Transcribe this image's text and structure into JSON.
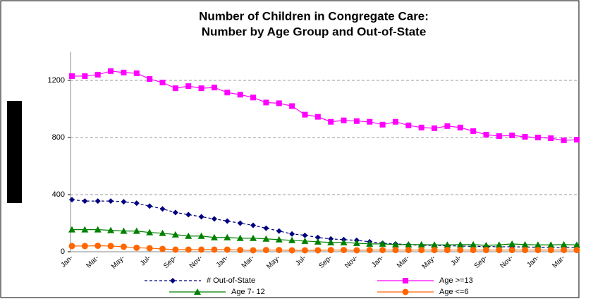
{
  "chart_data": {
    "type": "line",
    "title": "Number of Children in Congregate Care:",
    "subtitle": "Number by Age Group and Out-of-State",
    "categories": [
      "Jan-",
      null,
      "Mar-",
      null,
      "May-",
      null,
      "Jul-",
      null,
      "Sep-",
      null,
      "Nov-",
      null,
      "Jan-",
      null,
      "Mar-",
      null,
      "May-",
      null,
      "Jul-",
      null,
      "Sep-",
      null,
      "Nov-",
      null,
      "Jan-",
      null,
      "Mar-",
      null,
      "May-",
      null,
      "Jul-",
      null,
      "Sep-",
      null,
      "Nov-",
      null,
      "Jan-",
      null,
      "Mar-",
      null
    ],
    "series": [
      {
        "name": "# Out-of-State",
        "color": "#000080",
        "marker": "diamond",
        "dashed": true,
        "values": [
          365,
          355,
          355,
          355,
          350,
          340,
          320,
          300,
          275,
          260,
          245,
          230,
          215,
          200,
          185,
          165,
          145,
          125,
          115,
          100,
          90,
          85,
          80,
          70,
          60,
          55,
          50,
          45,
          45,
          42,
          40,
          38,
          37,
          35,
          35,
          33,
          32,
          30,
          30,
          30
        ]
      },
      {
        "name": "Age >=13",
        "color": "#ff00ff",
        "marker": "square",
        "dashed": false,
        "values": [
          1230,
          1230,
          1240,
          1265,
          1255,
          1250,
          1210,
          1185,
          1145,
          1160,
          1145,
          1150,
          1115,
          1100,
          1080,
          1045,
          1040,
          1020,
          960,
          945,
          910,
          920,
          915,
          910,
          890,
          910,
          885,
          870,
          865,
          880,
          870,
          845,
          820,
          810,
          815,
          805,
          800,
          795,
          780,
          785
        ]
      },
      {
        "name": "Age 7- 12",
        "color": "#008000",
        "marker": "triangle",
        "dashed": false,
        "values": [
          155,
          155,
          155,
          150,
          145,
          145,
          135,
          130,
          120,
          110,
          110,
          100,
          100,
          95,
          95,
          90,
          85,
          80,
          75,
          70,
          65,
          65,
          60,
          55,
          55,
          50,
          50,
          50,
          48,
          48,
          50,
          50,
          45,
          48,
          55,
          50,
          48,
          48,
          50,
          48
        ]
      },
      {
        "name": "Age <=6",
        "color": "#ff6600",
        "marker": "circle",
        "dashed": false,
        "values": [
          40,
          40,
          42,
          40,
          35,
          28,
          25,
          20,
          15,
          15,
          15,
          15,
          15,
          12,
          10,
          12,
          12,
          10,
          10,
          10,
          12,
          12,
          10,
          12,
          12,
          12,
          12,
          12,
          12,
          12,
          12,
          12,
          12,
          12,
          12,
          12,
          12,
          12,
          12,
          12
        ]
      }
    ],
    "ylim": [
      0,
      1400
    ],
    "yticks": [
      0,
      400,
      800,
      1200
    ],
    "grid": true
  }
}
